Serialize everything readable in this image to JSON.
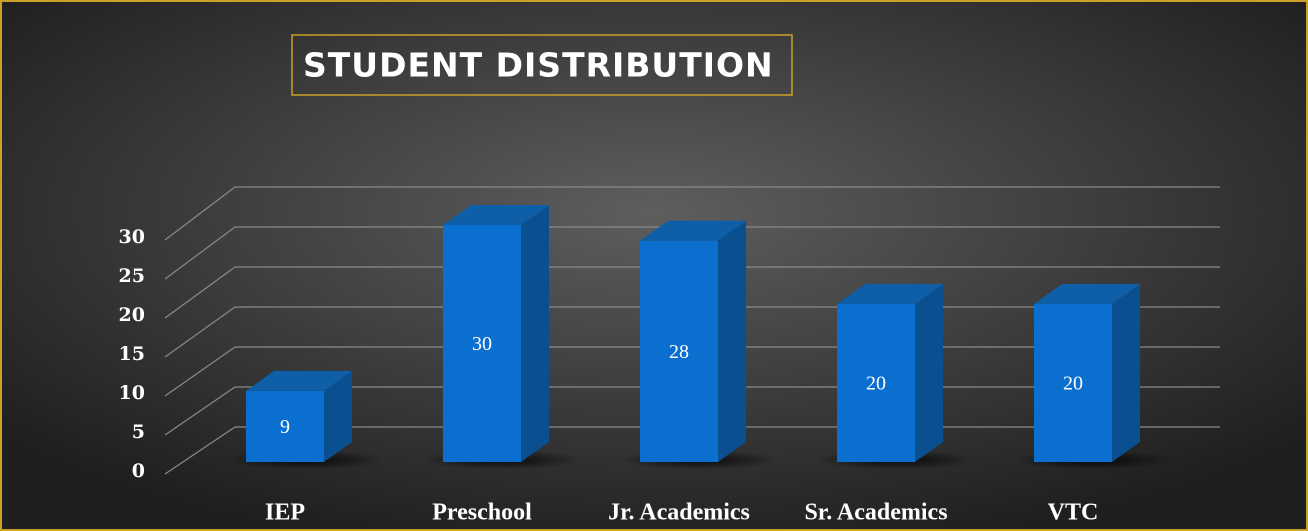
{
  "chart_data": {
    "type": "bar3d",
    "title": "STUDENT DISTRIBUTION",
    "categories": [
      "IEP",
      "Preschool",
      "Jr. Academics",
      "Sr. Academics",
      "VTC"
    ],
    "values": [
      9,
      30,
      28,
      20,
      20
    ],
    "color": "#0b6fd0",
    "ylim": [
      0,
      30
    ],
    "yticks": [
      0,
      5,
      10,
      15,
      20,
      25,
      30
    ],
    "grid": true
  }
}
